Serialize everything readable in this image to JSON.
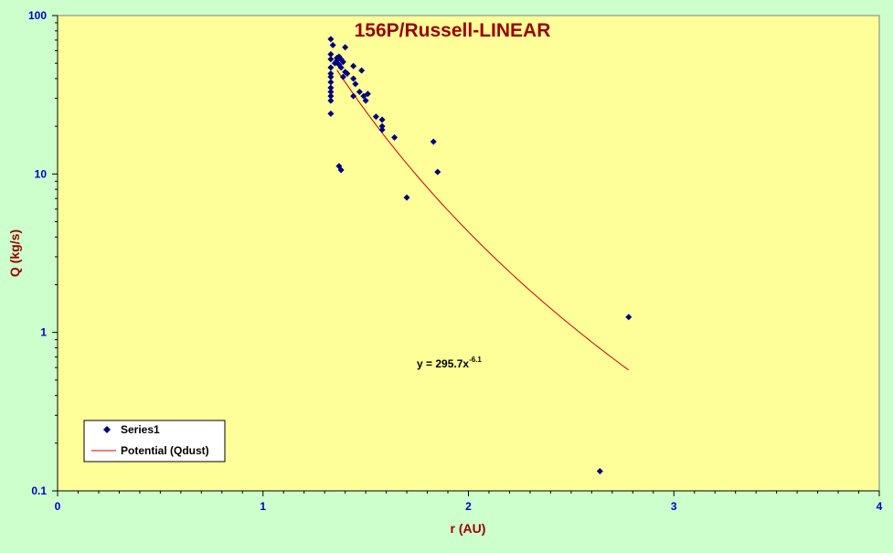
{
  "chart_data": {
    "type": "scatter",
    "title": "156P/Russell-LINEAR",
    "xlabel": "r (AU)",
    "ylabel": "Q (kg/s)",
    "xlim": [
      0,
      4
    ],
    "ylim": [
      0.1,
      100
    ],
    "yscale": "log",
    "x_ticks": [
      "0",
      "1",
      "2",
      "3",
      "4"
    ],
    "y_ticks": [
      "0.1",
      "1",
      "10",
      "100"
    ],
    "grid": false,
    "legend_position": "bottom-left",
    "series": [
      {
        "name": "Series1",
        "marker": "diamond",
        "color": "#00007f",
        "points": [
          [
            1.33,
            71
          ],
          [
            1.33,
            57
          ],
          [
            1.33,
            53
          ],
          [
            1.33,
            47
          ],
          [
            1.33,
            43
          ],
          [
            1.33,
            41
          ],
          [
            1.33,
            38
          ],
          [
            1.33,
            35
          ],
          [
            1.33,
            33
          ],
          [
            1.33,
            31
          ],
          [
            1.33,
            29
          ],
          [
            1.33,
            24
          ],
          [
            1.34,
            65
          ],
          [
            1.35,
            50
          ],
          [
            1.36,
            54
          ],
          [
            1.36,
            52
          ],
          [
            1.37,
            55
          ],
          [
            1.37,
            49
          ],
          [
            1.38,
            53
          ],
          [
            1.38,
            47
          ],
          [
            1.39,
            51
          ],
          [
            1.39,
            41
          ],
          [
            1.4,
            63
          ],
          [
            1.4,
            44
          ],
          [
            1.41,
            43
          ],
          [
            1.44,
            48
          ],
          [
            1.44,
            40
          ],
          [
            1.44,
            31
          ],
          [
            1.45,
            37
          ],
          [
            1.47,
            33
          ],
          [
            1.48,
            45
          ],
          [
            1.49,
            31
          ],
          [
            1.5,
            29
          ],
          [
            1.51,
            32
          ],
          [
            1.55,
            23
          ],
          [
            1.58,
            22
          ],
          [
            1.58,
            20
          ],
          [
            1.58,
            19
          ],
          [
            1.64,
            17
          ],
          [
            1.37,
            11.2
          ],
          [
            1.38,
            10.6
          ],
          [
            1.7,
            7.1
          ],
          [
            1.83,
            16
          ],
          [
            1.85,
            10.3
          ],
          [
            2.64,
            0.133
          ],
          [
            2.78,
            1.25
          ]
        ]
      },
      {
        "name": "Potential (Qdust)",
        "kind": "trendline",
        "color": "#cc0000",
        "coefficient": 295.7,
        "exponent": -6.1,
        "x_range": [
          1.36,
          2.78
        ]
      }
    ],
    "annotation": {
      "equation_base": "y = 295.7x",
      "equation_exponent": "-6.1"
    }
  },
  "colors": {
    "page_background": "#ccffcc",
    "plot_background": "#ffff99",
    "tick_labels": "#0000cc",
    "titles": "#990000"
  }
}
